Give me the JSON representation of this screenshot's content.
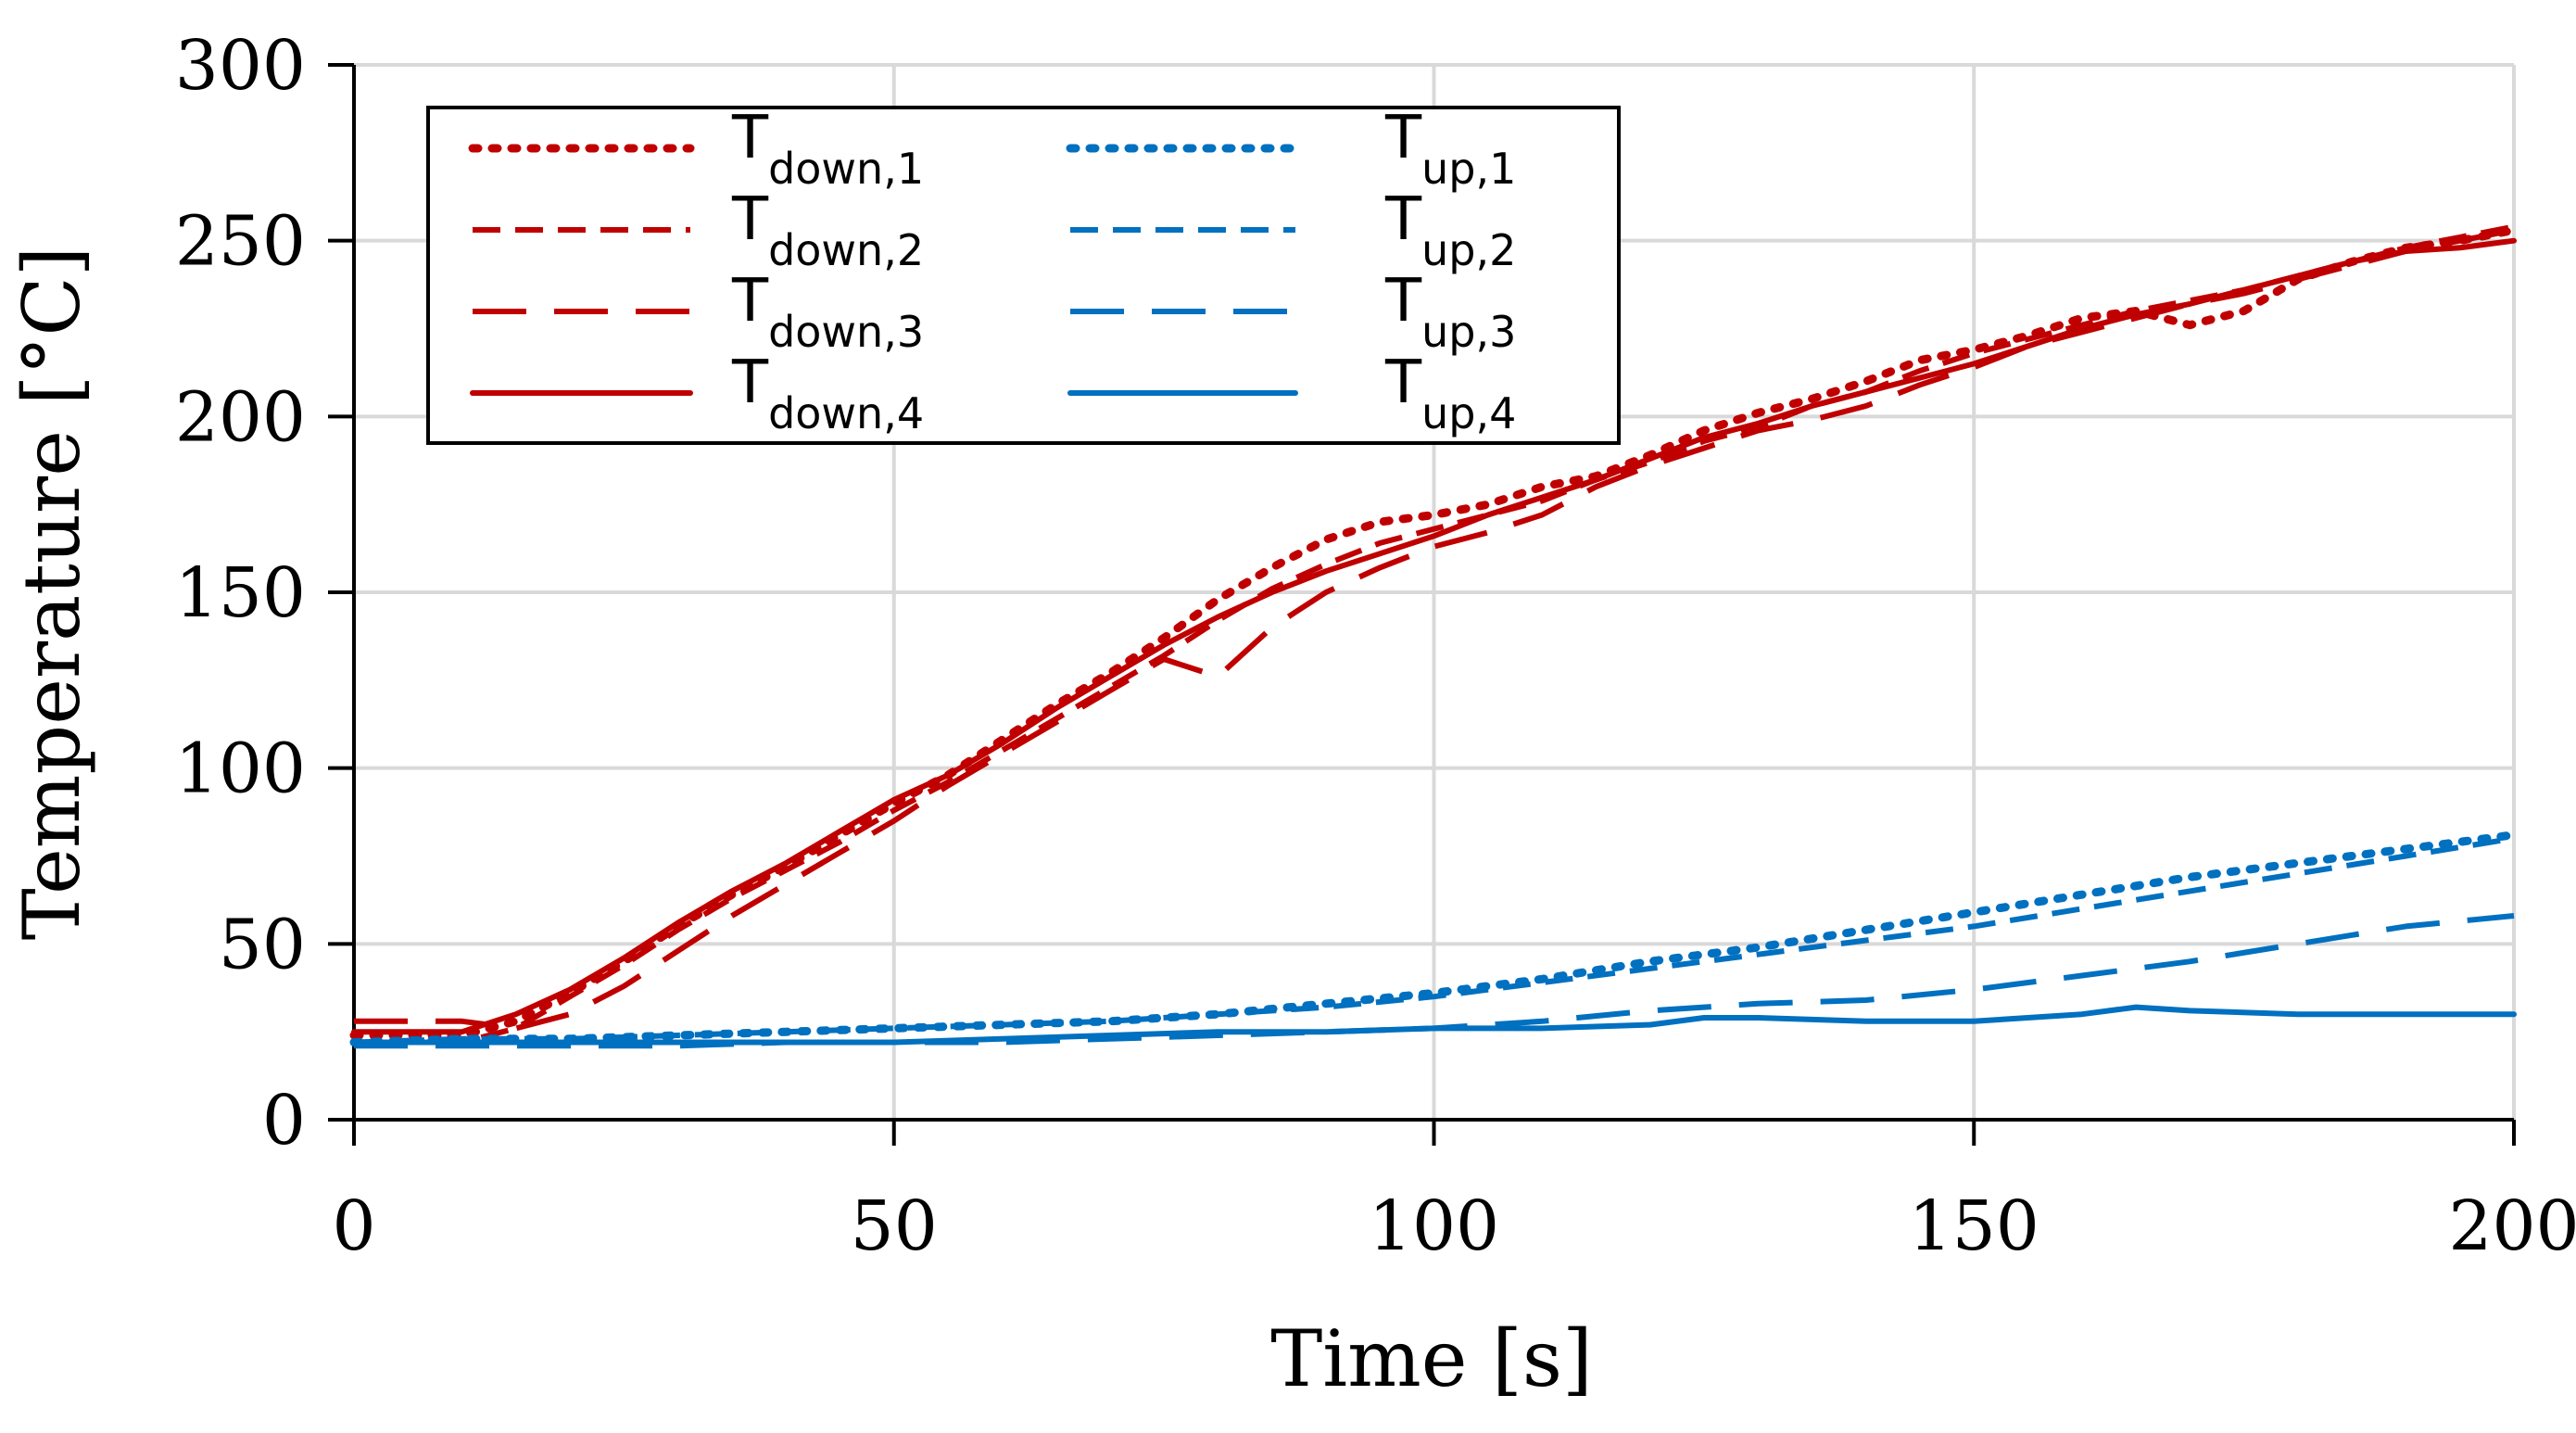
{
  "chart_data": {
    "type": "line",
    "title": "",
    "xlabel": "Time [s]",
    "ylabel": "Temperature [°C]",
    "xlim": [
      0,
      200
    ],
    "ylim": [
      0,
      300
    ],
    "xticks": [
      0,
      50,
      100,
      150,
      200
    ],
    "yticks": [
      0,
      50,
      100,
      150,
      200,
      250,
      300
    ],
    "xtick_labels": [
      "0",
      "50",
      "100",
      "150",
      "200"
    ],
    "ytick_labels": [
      "0",
      "50",
      "100",
      "150",
      "200",
      "250",
      "300"
    ],
    "grid": true,
    "legend_position": "top-left",
    "series": [
      {
        "name": "T_down,1",
        "main": "T",
        "sub": "down,1",
        "color": "#C00000",
        "dash": "dot",
        "x": [
          0,
          5,
          10,
          15,
          20,
          25,
          30,
          35,
          40,
          45,
          50,
          55,
          60,
          65,
          70,
          75,
          80,
          85,
          90,
          95,
          100,
          105,
          110,
          115,
          120,
          125,
          130,
          135,
          140,
          145,
          150,
          155,
          160,
          165,
          170,
          175,
          180,
          185,
          190,
          195,
          200
        ],
        "y": [
          24,
          24,
          24,
          28,
          36,
          45,
          55,
          64,
          72,
          81,
          90,
          98,
          108,
          118,
          127,
          137,
          148,
          157,
          165,
          170,
          172,
          175,
          180,
          183,
          189,
          196,
          201,
          205,
          210,
          216,
          219,
          223,
          228,
          230,
          226,
          230,
          239,
          244,
          248,
          250,
          253
        ]
      },
      {
        "name": "T_down,2",
        "main": "T",
        "sub": "down,2",
        "color": "#C00000",
        "dash": "short",
        "x": [
          0,
          5,
          10,
          15,
          20,
          25,
          30,
          35,
          40,
          45,
          50,
          55,
          60,
          65,
          70,
          75,
          80,
          85,
          90,
          95,
          100,
          105,
          110,
          115,
          120,
          125,
          130,
          135,
          140,
          145,
          150,
          155,
          160,
          165,
          170,
          175,
          180,
          185,
          190,
          195,
          200
        ],
        "y": [
          22,
          22,
          22,
          26,
          35,
          44,
          54,
          63,
          71,
          79,
          88,
          96,
          105,
          114,
          123,
          132,
          142,
          151,
          158,
          164,
          168,
          172,
          176,
          182,
          187,
          193,
          197,
          203,
          207,
          213,
          218,
          222,
          226,
          230,
          233,
          236,
          240,
          244,
          248,
          251,
          254
        ]
      },
      {
        "name": "T_down,3",
        "main": "T",
        "sub": "down,3",
        "color": "#C00000",
        "dash": "long",
        "x": [
          0,
          5,
          10,
          15,
          20,
          25,
          30,
          35,
          40,
          45,
          50,
          55,
          60,
          65,
          70,
          75,
          80,
          85,
          90,
          95,
          100,
          105,
          110,
          115,
          120,
          125,
          130,
          135,
          140,
          145,
          150,
          155,
          160,
          165,
          170,
          175,
          180,
          185,
          190,
          195,
          200
        ],
        "y": [
          28,
          28,
          28,
          26,
          30,
          38,
          48,
          58,
          67,
          76,
          85,
          95,
          104,
          113,
          122,
          131,
          126,
          140,
          150,
          157,
          163,
          167,
          172,
          180,
          186,
          191,
          196,
          199,
          203,
          209,
          214,
          220,
          224,
          228,
          232,
          235,
          239,
          243,
          247,
          250,
          253
        ]
      },
      {
        "name": "T_down,4",
        "main": "T",
        "sub": "down,4",
        "color": "#C00000",
        "dash": "solid",
        "x": [
          0,
          5,
          10,
          15,
          20,
          25,
          30,
          35,
          40,
          45,
          50,
          55,
          60,
          65,
          70,
          75,
          80,
          85,
          90,
          95,
          100,
          105,
          110,
          115,
          120,
          125,
          130,
          135,
          140,
          145,
          150,
          155,
          160,
          165,
          170,
          175,
          180,
          185,
          190,
          195,
          200
        ],
        "y": [
          25,
          25,
          25,
          30,
          37,
          46,
          56,
          65,
          73,
          82,
          91,
          98,
          107,
          117,
          126,
          135,
          143,
          150,
          156,
          161,
          166,
          172,
          177,
          182,
          188,
          194,
          198,
          203,
          207,
          211,
          215,
          220,
          225,
          229,
          232,
          236,
          240,
          244,
          247,
          248,
          250
        ]
      },
      {
        "name": "T_up,1",
        "main": "T",
        "sub": "up,1",
        "color": "#0070C0",
        "dash": "dot",
        "x": [
          0,
          10,
          20,
          30,
          40,
          50,
          60,
          70,
          80,
          90,
          100,
          110,
          120,
          130,
          140,
          150,
          160,
          170,
          180,
          190,
          200
        ],
        "y": [
          22,
          23,
          23,
          24,
          25,
          26,
          27,
          28,
          30,
          33,
          36,
          40,
          45,
          49,
          54,
          59,
          64,
          69,
          73,
          77,
          81
        ]
      },
      {
        "name": "T_up,2",
        "main": "T",
        "sub": "up,2",
        "color": "#0070C0",
        "dash": "short",
        "x": [
          0,
          10,
          20,
          30,
          40,
          50,
          60,
          70,
          80,
          90,
          100,
          110,
          120,
          130,
          140,
          150,
          160,
          170,
          180,
          190,
          200
        ],
        "y": [
          22,
          23,
          23,
          24,
          25,
          26,
          27,
          28,
          30,
          32,
          35,
          39,
          43,
          47,
          51,
          55,
          60,
          65,
          70,
          75,
          80
        ]
      },
      {
        "name": "T_up,3",
        "main": "T",
        "sub": "up,3",
        "color": "#0070C0",
        "dash": "long",
        "x": [
          0,
          10,
          20,
          30,
          40,
          50,
          60,
          70,
          80,
          90,
          100,
          110,
          120,
          130,
          140,
          150,
          160,
          170,
          180,
          190,
          200
        ],
        "y": [
          21,
          21,
          21,
          21,
          22,
          22,
          22,
          23,
          24,
          25,
          26,
          28,
          31,
          33,
          34,
          37,
          41,
          45,
          50,
          55,
          58
        ]
      },
      {
        "name": "T_up,4",
        "main": "T",
        "sub": "up,4",
        "color": "#0070C0",
        "dash": "solid",
        "x": [
          0,
          10,
          20,
          30,
          40,
          50,
          60,
          70,
          80,
          90,
          100,
          110,
          120,
          125,
          130,
          140,
          150,
          160,
          165,
          170,
          180,
          190,
          200
        ],
        "y": [
          22,
          22,
          22,
          22,
          22,
          22,
          23,
          24,
          25,
          25,
          26,
          26,
          27,
          29,
          29,
          28,
          28,
          30,
          32,
          31,
          30,
          30,
          30
        ]
      }
    ]
  }
}
